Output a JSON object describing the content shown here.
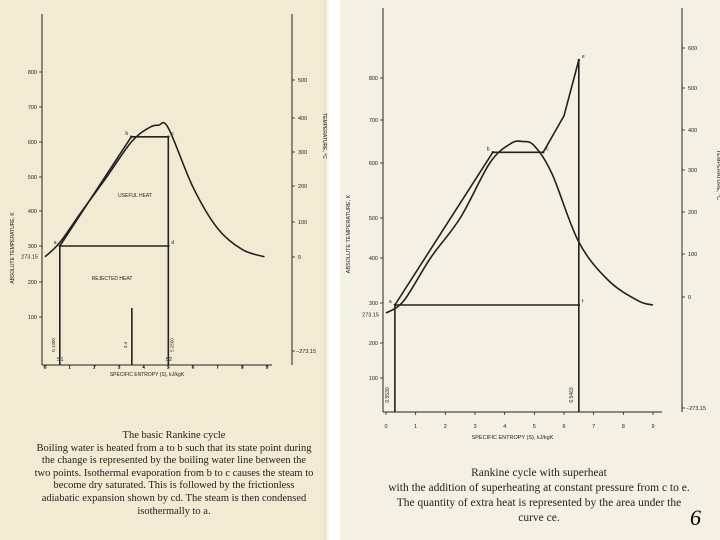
{
  "left_figure": {
    "caption_title": "The basic Rankine cycle",
    "caption_body": "Boiling water is heated from a to b such that its state point during the change is represented by the boiling water line between the two points. Isothermal evaporation from b to c causes the steam to become dry saturated. This is followed by the frictionless adiabatic expansion shown by cd. The steam is then condensed isothermally to a.",
    "region_labels": [
      "USEFUL HEAT",
      "REJECTED HEAT"
    ],
    "entropy_marks": [
      "0.1300",
      "3.4",
      "5.2550"
    ],
    "s_labels": [
      "S1",
      "S2"
    ]
  },
  "right_figure": {
    "caption_title": "Rankine cycle with superheat",
    "caption_body": "with the addition of superheating at constant pressure from c to e. The quantity of extra heat is represented by the area under the curve ce.",
    "entropy_marks": [
      "0.5530",
      "6.5463"
    ]
  },
  "chart_data": [
    {
      "type": "line",
      "title": "The basic Rankine cycle",
      "xlabel": "SPECIFIC ENTROPY (S), kJ/kgK",
      "ylabel": "ABSOLUTE TEMPERATURE, K",
      "y2label": "TEMPERATURE, °C",
      "xlim": [
        0,
        9.5
      ],
      "ylim": [
        0,
        900
      ],
      "x_ticks": [
        "0",
        "1",
        "2",
        "3",
        "4",
        "5",
        "6",
        "7",
        "8",
        "9"
      ],
      "y_ticks": [
        "100",
        "200",
        "300",
        "400",
        "500",
        "600",
        "700",
        "800"
      ],
      "y_special_tick": "273.15",
      "y2_ticks": [
        "500",
        "400",
        "300",
        "200",
        "100",
        "0"
      ],
      "y2_bottom_tick": "−273.15",
      "series": [
        {
          "name": "saturation dome",
          "x": [
            0,
            0.6,
            1.5,
            2.5,
            3.5,
            4.2,
            4.6,
            5.0,
            6.0,
            7.0,
            8.0,
            8.9
          ],
          "y": [
            270,
            310,
            400,
            500,
            600,
            640,
            648,
            640,
            470,
            350,
            290,
            270
          ]
        },
        {
          "name": "cycle",
          "x": [
            0.6,
            3.5,
            5.0,
            5.0,
            0.6
          ],
          "y": [
            300,
            615,
            615,
            300,
            300
          ]
        }
      ],
      "points": [
        {
          "label": "a",
          "x": 0.6,
          "y": 300
        },
        {
          "label": "b",
          "x": 3.5,
          "y": 615
        },
        {
          "label": "c",
          "x": 5.0,
          "y": 615
        },
        {
          "label": "d",
          "x": 5.0,
          "y": 300
        }
      ]
    },
    {
      "type": "line",
      "title": "Rankine cycle with superheat",
      "xlabel": "SPECIFIC ENTROPY (S), kJ/kgK",
      "ylabel": "ABSOLUTE TEMPERATURE, K",
      "y2label": "TEMPERATURE, °C",
      "xlim": [
        0,
        9.5
      ],
      "ylim": [
        0,
        900
      ],
      "x_ticks": [
        "0",
        "1",
        "2",
        "3",
        "4",
        "5",
        "6",
        "7",
        "8",
        "9"
      ],
      "y_ticks": [
        "100",
        "200",
        "300",
        "400",
        "500",
        "600",
        "700",
        "800"
      ],
      "y_special_tick": "273.15",
      "y2_ticks": [
        "600",
        "500",
        "400",
        "300",
        "200",
        "100",
        "0"
      ],
      "y2_bottom_tick": "−273.15",
      "series": [
        {
          "name": "saturation dome",
          "x": [
            0,
            0.6,
            1.5,
            2.5,
            3.5,
            4.2,
            4.6,
            5.0,
            5.6,
            6.5,
            7.5,
            8.5,
            9.0
          ],
          "y": [
            275,
            305,
            400,
            500,
            600,
            645,
            650,
            640,
            580,
            440,
            350,
            305,
            295
          ]
        },
        {
          "name": "cycle",
          "x": [
            0.3,
            3.6,
            5.3,
            6.0,
            6.5,
            6.5,
            0.3
          ],
          "y": [
            295,
            625,
            625,
            710,
            845,
            295,
            295
          ]
        }
      ],
      "points": [
        {
          "label": "a",
          "x": 0.3,
          "y": 295
        },
        {
          "label": "b",
          "x": 3.6,
          "y": 625
        },
        {
          "label": "c",
          "x": 5.3,
          "y": 625
        },
        {
          "label": "e",
          "x": 6.5,
          "y": 845
        },
        {
          "label": "f",
          "x": 6.5,
          "y": 295
        }
      ]
    }
  ],
  "slide_number": "6"
}
